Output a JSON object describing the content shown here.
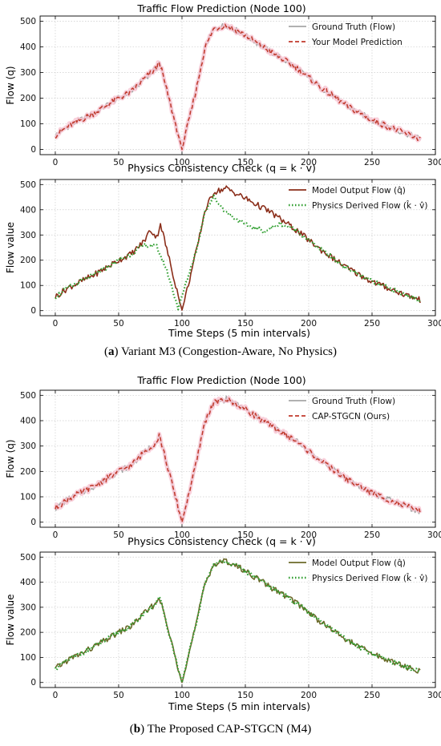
{
  "figure": {
    "captions": [
      {
        "letter": "a",
        "text": " Variant M3 (Congestion-Aware, No Physics)"
      },
      {
        "letter": "b",
        "text": " The Proposed CAP-STGCN (M4)"
      }
    ]
  },
  "colors": {
    "ground_truth": "#a6a6a6",
    "prediction": "#c0392b",
    "pred_band": "#f7c6d3",
    "model_output": "#8b2e1a",
    "physics_derived": "#2e9e2e",
    "overlap": "#6b6a2a",
    "grid": "#cccccc"
  },
  "chart_data": [
    {
      "type": "line",
      "title": "Traffic Flow Prediction (Node 100)",
      "xlabel": "",
      "ylabel": "Flow (q)",
      "xlim": [
        -12,
        300
      ],
      "ylim": [
        -20,
        520
      ],
      "xticks": [
        0,
        50,
        100,
        150,
        200,
        250,
        300
      ],
      "yticks": [
        0,
        100,
        200,
        300,
        400,
        500
      ],
      "grid": true,
      "legend_position": "top-right",
      "x_points": 288,
      "series": [
        {
          "name": "Ground Truth (Flow)",
          "style": "solid",
          "color": "#a6a6a6",
          "anchors": [
            [
              0,
              55
            ],
            [
              10,
              90
            ],
            [
              30,
              140
            ],
            [
              50,
              200
            ],
            [
              60,
              225
            ],
            [
              70,
              275
            ],
            [
              80,
              318
            ],
            [
              82,
              345
            ],
            [
              100,
              0
            ],
            [
              112,
              250
            ],
            [
              118,
              395
            ],
            [
              125,
              470
            ],
            [
              135,
              485
            ],
            [
              150,
              445
            ],
            [
              170,
              380
            ],
            [
              190,
              320
            ],
            [
              210,
              240
            ],
            [
              230,
              170
            ],
            [
              250,
              115
            ],
            [
              270,
              75
            ],
            [
              289,
              40
            ]
          ]
        },
        {
          "name": "Your Model Prediction",
          "style": "dashed",
          "color": "#c0392b",
          "anchors": [
            [
              0,
              55
            ],
            [
              10,
              90
            ],
            [
              30,
              140
            ],
            [
              50,
              200
            ],
            [
              60,
              225
            ],
            [
              70,
              275
            ],
            [
              80,
              318
            ],
            [
              82,
              345
            ],
            [
              100,
              0
            ],
            [
              112,
              250
            ],
            [
              118,
              395
            ],
            [
              125,
              470
            ],
            [
              135,
              485
            ],
            [
              150,
              445
            ],
            [
              170,
              380
            ],
            [
              190,
              320
            ],
            [
              210,
              240
            ],
            [
              230,
              170
            ],
            [
              250,
              115
            ],
            [
              270,
              75
            ],
            [
              289,
              40
            ]
          ]
        }
      ]
    },
    {
      "type": "line",
      "title": "Physics Consistency Check (q = k · v)",
      "xlabel": "Time Steps (5 min intervals)",
      "ylabel": "Flow value",
      "xlim": [
        -12,
        300
      ],
      "ylim": [
        -20,
        520
      ],
      "xticks": [
        0,
        50,
        100,
        150,
        200,
        250,
        300
      ],
      "yticks": [
        0,
        100,
        200,
        300,
        400,
        500
      ],
      "grid": true,
      "legend_position": "top-right",
      "x_points": 288,
      "series": [
        {
          "name": "Model Output Flow (q̂)",
          "style": "solid",
          "color": "#8b2e1a",
          "anchors": [
            [
              0,
              55
            ],
            [
              10,
              90
            ],
            [
              30,
              140
            ],
            [
              50,
              200
            ],
            [
              60,
              225
            ],
            [
              70,
              275
            ],
            [
              75,
              320
            ],
            [
              80,
              290
            ],
            [
              83,
              345
            ],
            [
              100,
              0
            ],
            [
              112,
              250
            ],
            [
              118,
              395
            ],
            [
              125,
              470
            ],
            [
              135,
              485
            ],
            [
              150,
              445
            ],
            [
              170,
              390
            ],
            [
              190,
              320
            ],
            [
              210,
              240
            ],
            [
              230,
              170
            ],
            [
              250,
              115
            ],
            [
              270,
              75
            ],
            [
              289,
              40
            ]
          ]
        },
        {
          "name": "Physics Derived Flow (k̂ · v̂)",
          "style": "dotted",
          "color": "#2e9e2e",
          "anchors": [
            [
              0,
              55
            ],
            [
              10,
              90
            ],
            [
              30,
              140
            ],
            [
              50,
              200
            ],
            [
              60,
              225
            ],
            [
              70,
              260
            ],
            [
              80,
              255
            ],
            [
              88,
              160
            ],
            [
              97,
              10
            ],
            [
              112,
              250
            ],
            [
              118,
              395
            ],
            [
              125,
              450
            ],
            [
              135,
              390
            ],
            [
              150,
              340
            ],
            [
              165,
              315
            ],
            [
              178,
              345
            ],
            [
              190,
              320
            ],
            [
              210,
              240
            ],
            [
              230,
              170
            ],
            [
              250,
              115
            ],
            [
              270,
              75
            ],
            [
              289,
              40
            ]
          ]
        }
      ]
    },
    {
      "type": "line",
      "title": "Traffic Flow Prediction (Node 100)",
      "xlabel": "",
      "ylabel": "Flow (q)",
      "xlim": [
        -12,
        300
      ],
      "ylim": [
        -20,
        520
      ],
      "xticks": [
        0,
        50,
        100,
        150,
        200,
        250,
        300
      ],
      "yticks": [
        0,
        100,
        200,
        300,
        400,
        500
      ],
      "grid": true,
      "legend_position": "top-right",
      "x_points": 288,
      "series": [
        {
          "name": "Ground Truth (Flow)",
          "style": "solid",
          "color": "#a6a6a6",
          "anchors": [
            [
              0,
              55
            ],
            [
              10,
              90
            ],
            [
              30,
              140
            ],
            [
              50,
              200
            ],
            [
              60,
              225
            ],
            [
              70,
              275
            ],
            [
              80,
              318
            ],
            [
              82,
              345
            ],
            [
              100,
              0
            ],
            [
              112,
              250
            ],
            [
              118,
              395
            ],
            [
              125,
              470
            ],
            [
              135,
              485
            ],
            [
              150,
              445
            ],
            [
              170,
              380
            ],
            [
              190,
              320
            ],
            [
              210,
              240
            ],
            [
              230,
              170
            ],
            [
              250,
              115
            ],
            [
              270,
              75
            ],
            [
              289,
              40
            ]
          ]
        },
        {
          "name": "CAP-STGCN (Ours)",
          "style": "dashed",
          "color": "#c0392b",
          "anchors": [
            [
              0,
              55
            ],
            [
              10,
              90
            ],
            [
              30,
              140
            ],
            [
              50,
              200
            ],
            [
              60,
              225
            ],
            [
              70,
              275
            ],
            [
              80,
              318
            ],
            [
              82,
              345
            ],
            [
              100,
              0
            ],
            [
              112,
              250
            ],
            [
              118,
              395
            ],
            [
              125,
              470
            ],
            [
              135,
              485
            ],
            [
              150,
              445
            ],
            [
              170,
              380
            ],
            [
              190,
              320
            ],
            [
              210,
              240
            ],
            [
              230,
              170
            ],
            [
              250,
              115
            ],
            [
              270,
              75
            ],
            [
              289,
              40
            ]
          ]
        }
      ]
    },
    {
      "type": "line",
      "title": "Physics Consistency Check (q = k · v)",
      "xlabel": "Time Steps (5 min intervals)",
      "ylabel": "Flow value",
      "xlim": [
        -12,
        300
      ],
      "ylim": [
        -20,
        520
      ],
      "xticks": [
        0,
        50,
        100,
        150,
        200,
        250,
        300
      ],
      "yticks": [
        0,
        100,
        200,
        300,
        400,
        500
      ],
      "grid": true,
      "legend_position": "top-right",
      "x_points": 288,
      "series": [
        {
          "name": "Model Output Flow (q̂)",
          "style": "solid",
          "color": "#6b6a2a",
          "anchors": [
            [
              0,
              55
            ],
            [
              10,
              90
            ],
            [
              30,
              140
            ],
            [
              50,
              200
            ],
            [
              60,
              225
            ],
            [
              70,
              275
            ],
            [
              80,
              318
            ],
            [
              82,
              345
            ],
            [
              100,
              0
            ],
            [
              112,
              250
            ],
            [
              118,
              395
            ],
            [
              125,
              470
            ],
            [
              135,
              485
            ],
            [
              150,
              445
            ],
            [
              170,
              380
            ],
            [
              190,
              320
            ],
            [
              210,
              240
            ],
            [
              230,
              170
            ],
            [
              250,
              115
            ],
            [
              270,
              75
            ],
            [
              289,
              40
            ]
          ]
        },
        {
          "name": "Physics Derived Flow (k̂ · v̂)",
          "style": "dotted",
          "color": "#2e9e2e",
          "anchors": [
            [
              0,
              55
            ],
            [
              10,
              90
            ],
            [
              30,
              140
            ],
            [
              50,
              200
            ],
            [
              60,
              225
            ],
            [
              70,
              275
            ],
            [
              80,
              318
            ],
            [
              82,
              345
            ],
            [
              100,
              0
            ],
            [
              112,
              250
            ],
            [
              118,
              395
            ],
            [
              125,
              470
            ],
            [
              135,
              485
            ],
            [
              150,
              445
            ],
            [
              170,
              380
            ],
            [
              190,
              320
            ],
            [
              210,
              240
            ],
            [
              230,
              170
            ],
            [
              250,
              115
            ],
            [
              270,
              75
            ],
            [
              289,
              40
            ]
          ]
        }
      ]
    }
  ]
}
